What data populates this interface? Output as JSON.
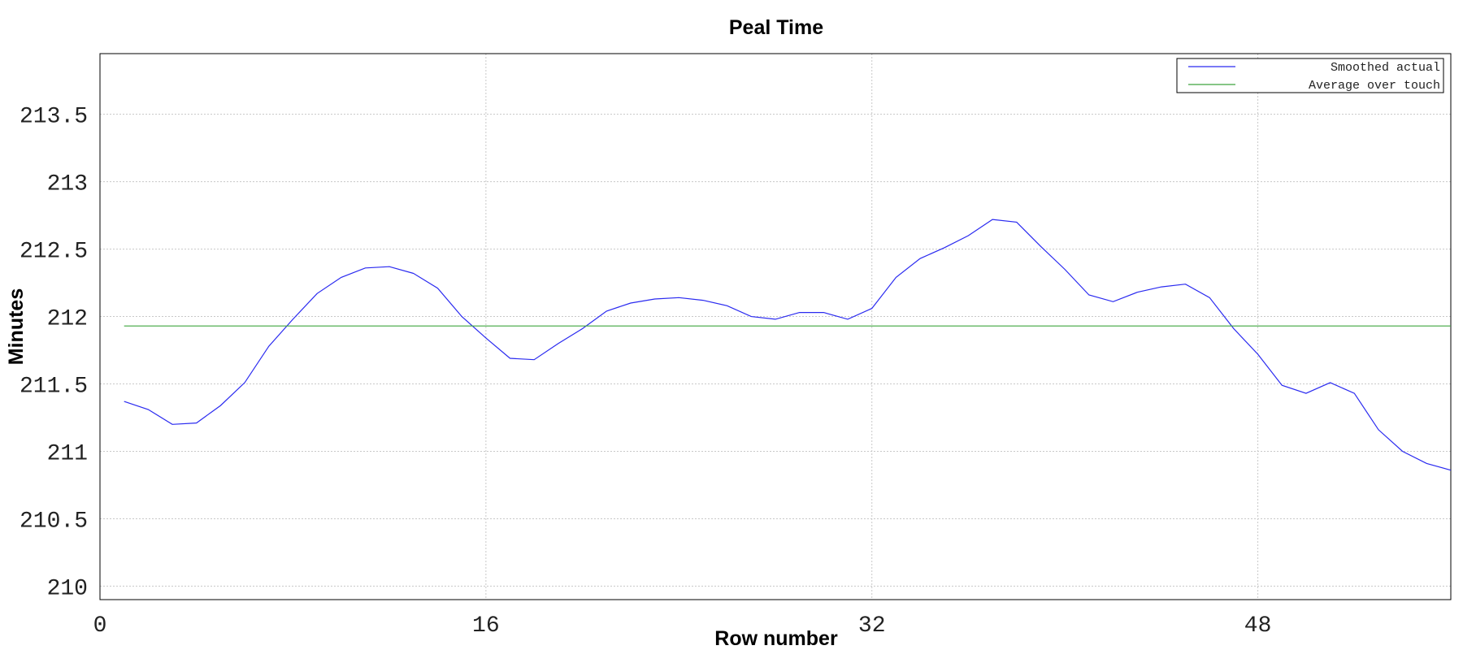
{
  "chart_data": {
    "type": "line",
    "title": "Peal Time",
    "xlabel": "Row number",
    "ylabel": "Minutes",
    "xlim": [
      0,
      56
    ],
    "ylim": [
      209.9,
      213.95
    ],
    "x_ticks": [
      0,
      16,
      32,
      48
    ],
    "y_ticks": [
      210,
      210.5,
      211,
      211.5,
      212,
      212.5,
      213,
      213.5
    ],
    "x_tick_labels": [
      "0",
      "16",
      "32",
      "48"
    ],
    "y_tick_labels": [
      "210",
      "210.5",
      "211",
      "211.5",
      "212",
      "212.5",
      "213",
      "213.5"
    ],
    "grid": true,
    "legend_position": "top-right",
    "series": [
      {
        "name": "Smoothed actual",
        "color": "#2a2af0",
        "x": [
          1,
          2,
          3,
          4,
          5,
          6,
          7,
          8,
          9,
          10,
          11,
          12,
          13,
          14,
          15,
          16,
          17,
          18,
          19,
          20,
          21,
          22,
          23,
          24,
          25,
          26,
          27,
          28,
          29,
          30,
          31,
          32,
          33,
          34,
          35,
          36,
          37,
          38,
          39,
          40,
          41,
          42,
          43,
          44,
          45,
          46,
          47,
          48,
          49,
          50,
          51,
          52,
          53,
          54,
          55,
          56
        ],
        "values": [
          211.37,
          211.31,
          211.2,
          211.21,
          211.34,
          211.51,
          211.78,
          211.98,
          212.17,
          212.29,
          212.36,
          212.37,
          212.32,
          212.21,
          212.0,
          211.84,
          211.69,
          211.68,
          211.8,
          211.91,
          212.04,
          212.1,
          212.13,
          212.14,
          212.12,
          212.08,
          212.0,
          211.98,
          212.03,
          212.03,
          211.98,
          212.06,
          212.29,
          212.43,
          212.51,
          212.6,
          212.72,
          212.7,
          212.52,
          212.35,
          212.16,
          212.11,
          212.18,
          212.22,
          212.24,
          212.14,
          211.91,
          211.72,
          211.49,
          211.43,
          211.51,
          211.43,
          211.16,
          211.0,
          210.91,
          210.86
        ]
      },
      {
        "name": "Average over touch",
        "color": "#3fa53f",
        "x": [
          1,
          56
        ],
        "values": [
          211.93,
          211.93
        ]
      }
    ]
  }
}
